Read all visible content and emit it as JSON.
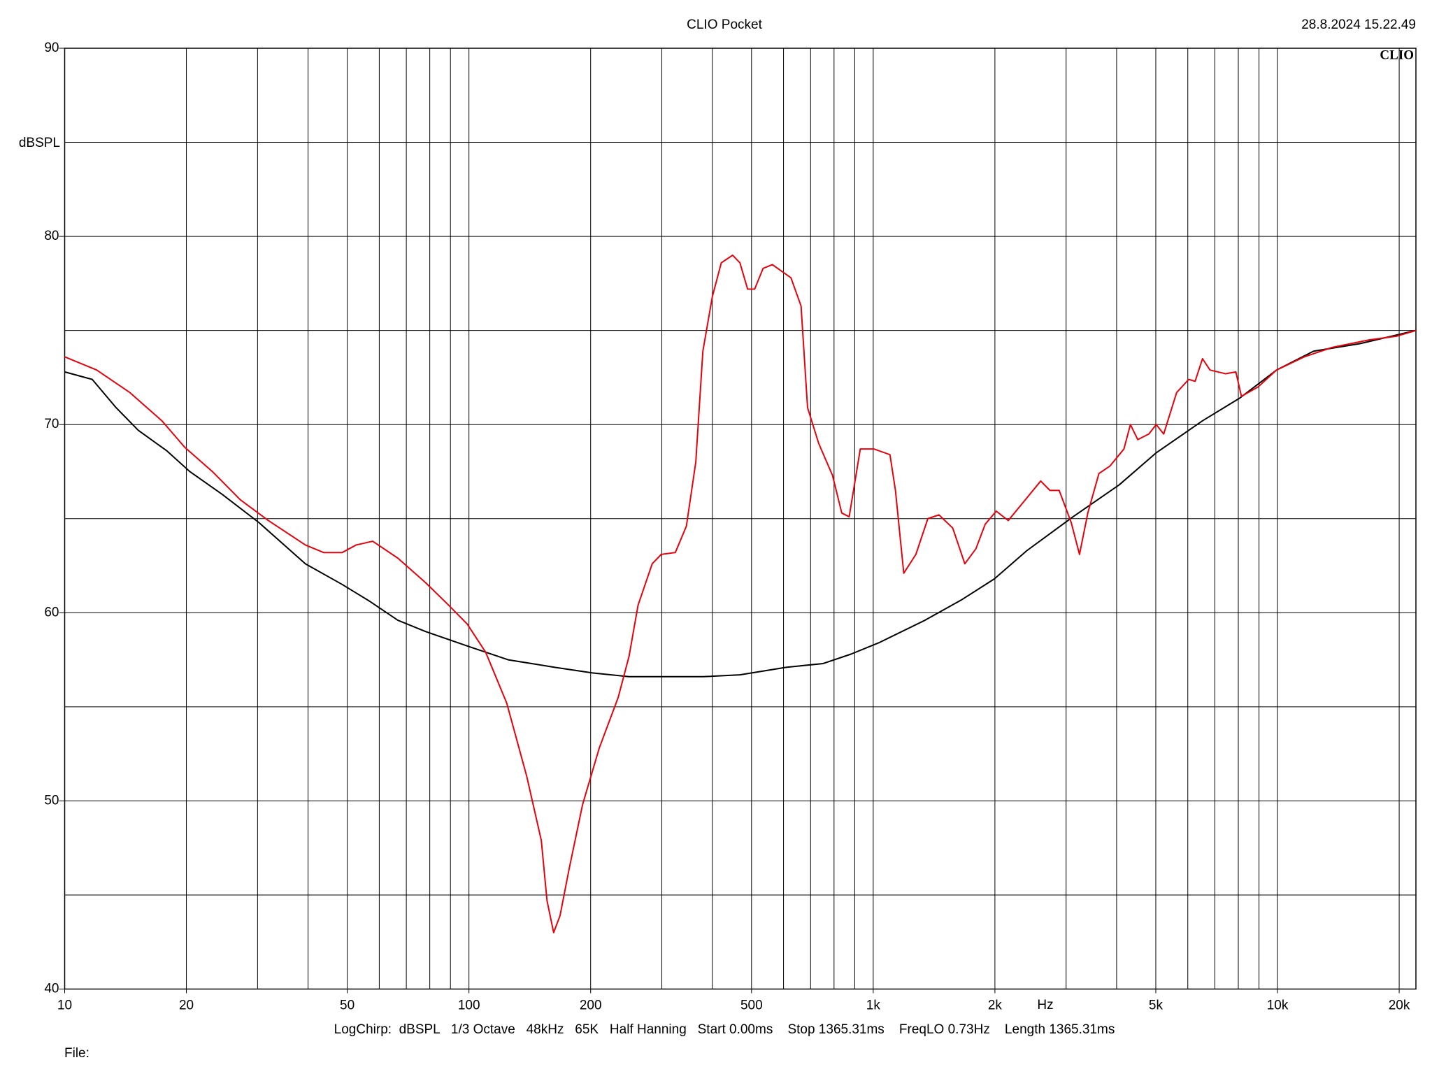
{
  "chart_data": {
    "type": "line",
    "title": "CLIO Pocket",
    "timestamp": "28.8.2024 15.22.49",
    "logo": "CLIO",
    "ylabel": "dBSPL",
    "xlabel": "Hz",
    "settings_text": "LogChirp:  dBSPL   1/3 Octave   48kHz   65K   Half Hanning   Start 0.00ms    Stop 1365.31ms    FreqLO 0.73Hz    Length 1365.31ms",
    "file_label": "File:",
    "xlog": true,
    "grid": true,
    "xlim": [
      10,
      22000
    ],
    "ylim": [
      40,
      90
    ],
    "xticks": [
      10,
      20,
      50,
      100,
      200,
      500,
      {
        "value": 1000,
        "label": "1k"
      },
      {
        "value": 2000,
        "label": "2k"
      },
      {
        "value": 5000,
        "label": "5k"
      },
      {
        "value": 10000,
        "label": "10k"
      },
      {
        "value": 20000,
        "label": "20k"
      }
    ],
    "xgrid": [
      20,
      30,
      40,
      50,
      60,
      70,
      80,
      90,
      100,
      200,
      300,
      400,
      500,
      600,
      700,
      800,
      900,
      1000,
      2000,
      3000,
      4000,
      5000,
      6000,
      7000,
      8000,
      9000,
      10000,
      20000
    ],
    "yticks": [
      40,
      50,
      60,
      70,
      80,
      90
    ],
    "ygrid": [
      45,
      50,
      55,
      60,
      65,
      70,
      75,
      80,
      85
    ],
    "series": [
      {
        "color": "#000000",
        "x": [
          10,
          11.7,
          13.4,
          15.2,
          17.9,
          20.4,
          24.5,
          30.2,
          39.4,
          48.6,
          56.9,
          66.7,
          78.1,
          100,
          125,
          163,
          202,
          249,
          307,
          379,
          468,
          609,
          752,
          881,
          1032,
          1343,
          1658,
          1994,
          2399,
          3121,
          4062,
          5013,
          6524,
          8057,
          9950,
          12280,
          15990,
          22000
        ],
        "values": [
          72.8,
          72.4,
          70.9,
          69.7,
          68.6,
          67.5,
          66.3,
          64.8,
          62.6,
          61.5,
          60.6,
          59.6,
          59.0,
          58.2,
          57.5,
          57.1,
          56.8,
          56.6,
          56.6,
          56.6,
          56.7,
          57.1,
          57.3,
          57.8,
          58.4,
          59.6,
          60.7,
          61.8,
          63.3,
          65.1,
          66.8,
          68.5,
          70.2,
          71.4,
          72.9,
          73.9,
          74.3,
          75.0
        ]
      },
      {
        "color": "#e8000b",
        "x": [
          10,
          12.0,
          14.5,
          17.4,
          19.8,
          23.2,
          27.2,
          31.9,
          39.4,
          43.7,
          48.6,
          52.6,
          57.8,
          66.7,
          78.1,
          89.1,
          99,
          110,
          124,
          139,
          151,
          156,
          162,
          168,
          177,
          191,
          210,
          234,
          249,
          262,
          284,
          299,
          324,
          345,
          364,
          379,
          400,
          421,
          449,
          468,
          489,
          509,
          534,
          563,
          626,
          663,
          688,
          733,
          793,
          836,
          872,
          929,
          1005,
          1100,
          1135,
          1190,
          1275,
          1365,
          1454,
          1573,
          1685,
          1795,
          1892,
          2015,
          2158,
          2336,
          2596,
          2736,
          2884,
          3088,
          3238,
          3395,
          3617,
          3853,
          4170,
          4327,
          4512,
          4808,
          5013,
          5230,
          5630,
          6031,
          6256,
          6524,
          6808,
          7445,
          7889,
          8143,
          8952,
          9950,
          11650,
          13650,
          16850,
          19740,
          22000
        ],
        "values": [
          73.6,
          72.9,
          71.7,
          70.2,
          68.8,
          67.5,
          66.0,
          64.9,
          63.6,
          63.2,
          63.2,
          63.6,
          63.8,
          62.9,
          61.6,
          60.4,
          59.4,
          57.9,
          55.2,
          51.3,
          47.9,
          44.7,
          43.0,
          43.9,
          46.4,
          49.8,
          52.8,
          55.5,
          57.7,
          60.4,
          62.6,
          63.1,
          63.2,
          64.6,
          68.0,
          73.9,
          76.8,
          78.6,
          79.0,
          78.6,
          77.2,
          77.2,
          78.3,
          78.5,
          77.8,
          76.3,
          70.9,
          69.0,
          67.3,
          65.3,
          65.1,
          68.7,
          68.7,
          68.4,
          66.5,
          62.1,
          63.1,
          65.0,
          65.2,
          64.5,
          62.6,
          63.4,
          64.7,
          65.4,
          64.9,
          65.8,
          67.0,
          66.5,
          66.5,
          64.8,
          63.1,
          65.3,
          67.4,
          67.8,
          68.7,
          70.0,
          69.2,
          69.5,
          70.0,
          69.5,
          71.7,
          72.4,
          72.3,
          73.5,
          72.9,
          72.7,
          72.8,
          71.5,
          72.0,
          72.9,
          73.6,
          74.1,
          74.5,
          74.7,
          75.0
        ]
      }
    ]
  }
}
